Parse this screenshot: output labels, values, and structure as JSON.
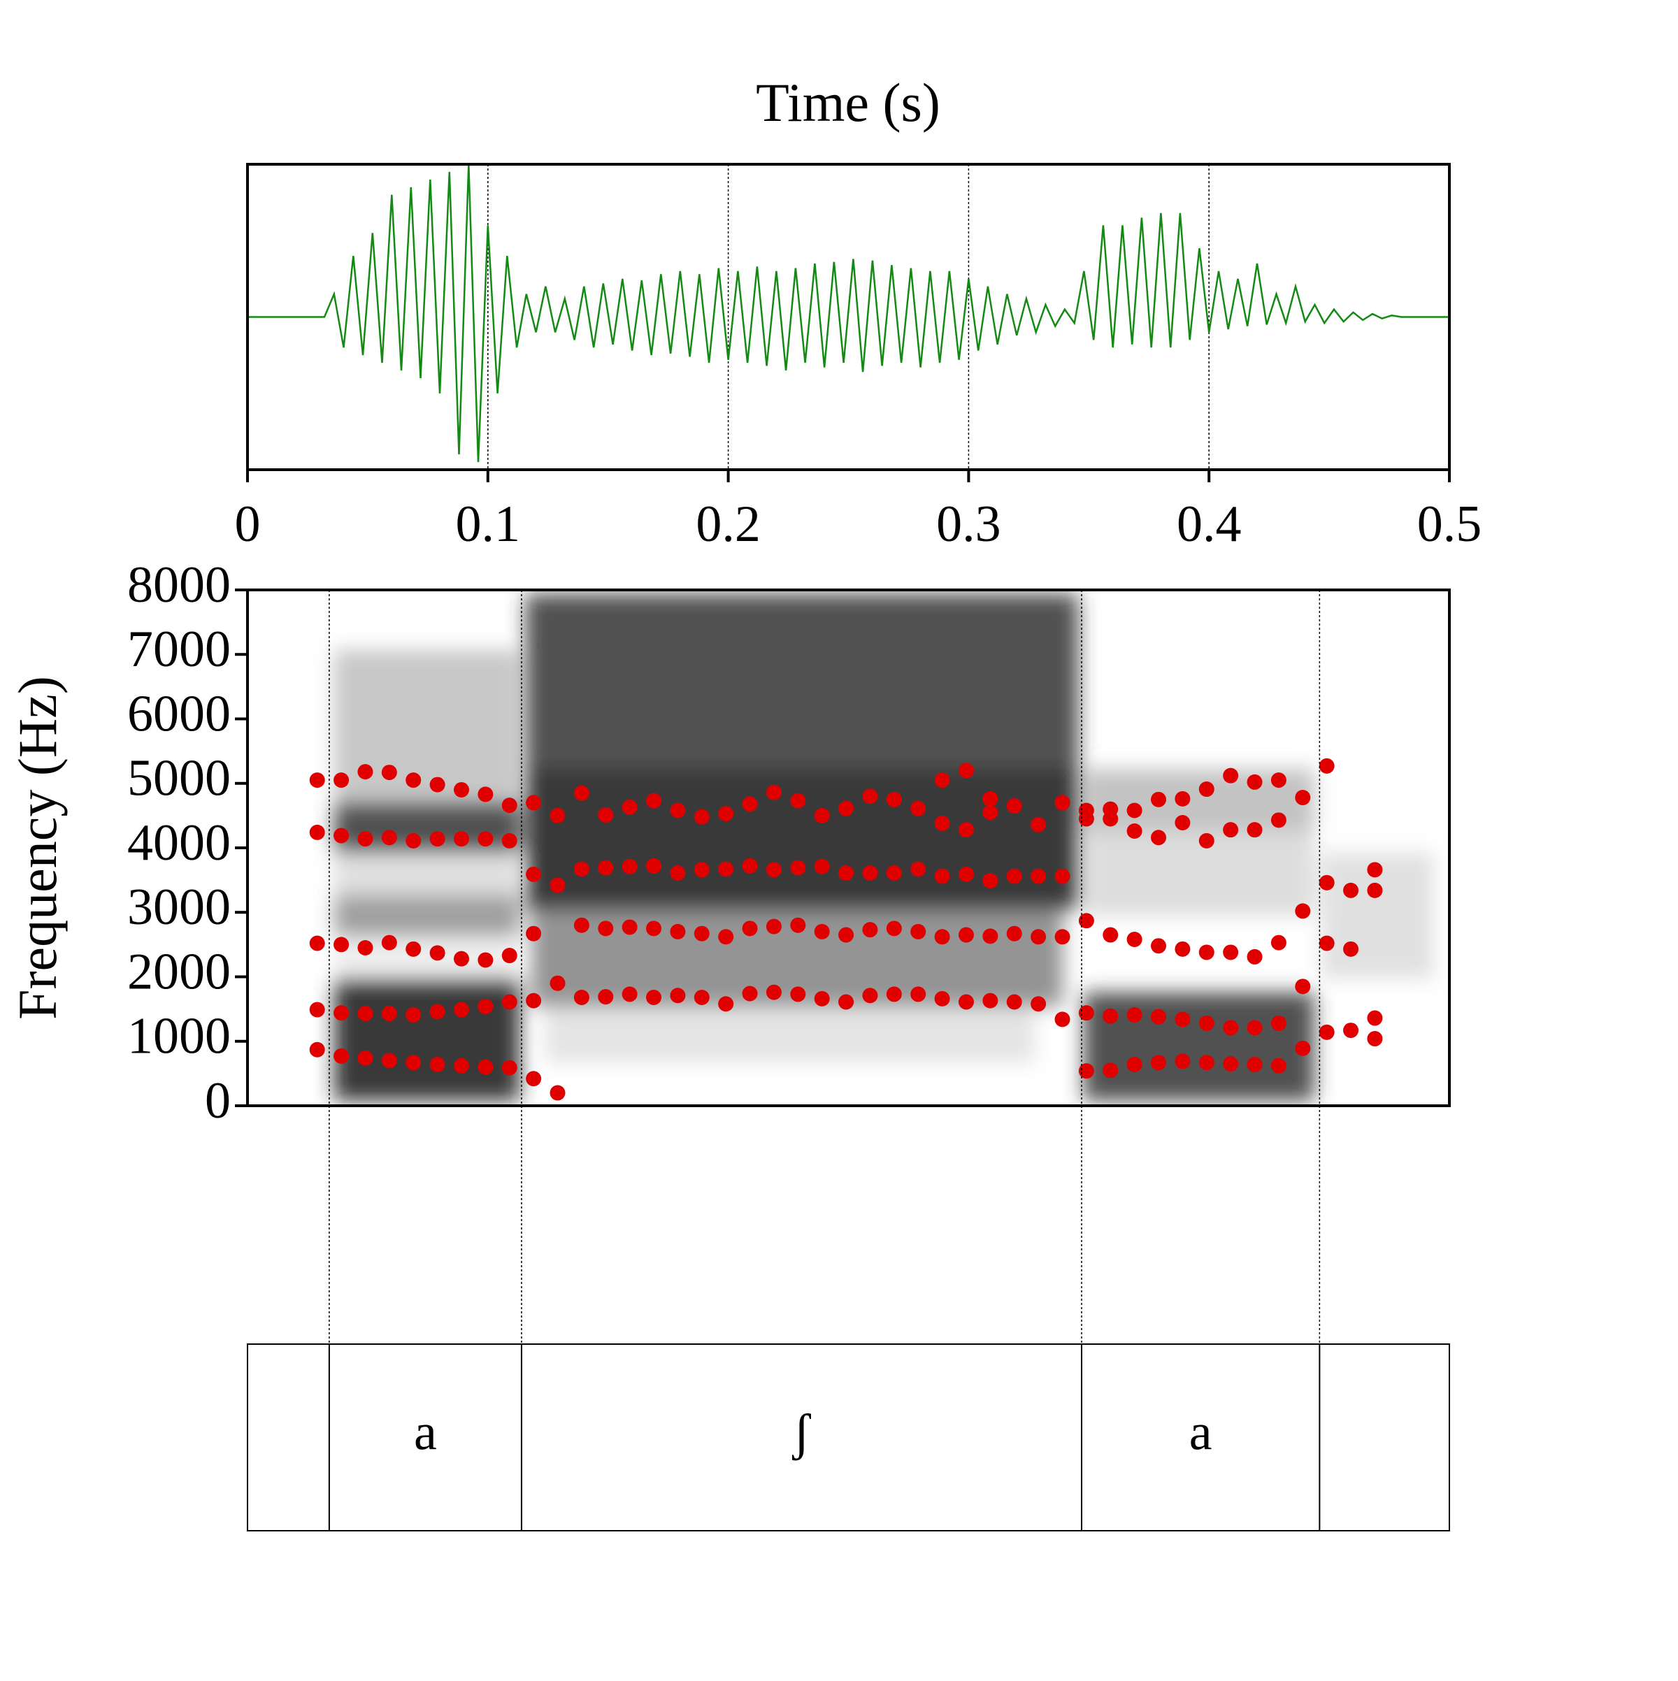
{
  "chart_data": [
    {
      "type": "line",
      "title": "Time (s)",
      "color": "#138a13",
      "xlim": [
        0,
        0.5
      ],
      "xticks": [
        0,
        0.1,
        0.2,
        0.3,
        0.4,
        0.5
      ],
      "ylim": [
        -1,
        1
      ],
      "grid": true,
      "x": [
        0,
        0.004,
        0.008,
        0.012,
        0.016,
        0.02,
        0.024,
        0.028,
        0.032,
        0.036,
        0.04,
        0.044,
        0.048,
        0.052,
        0.056,
        0.06,
        0.064,
        0.068,
        0.072,
        0.076,
        0.08,
        0.084,
        0.088,
        0.092,
        0.096,
        0.1,
        0.104,
        0.108,
        0.112,
        0.116,
        0.12,
        0.124,
        0.128,
        0.132,
        0.136,
        0.14,
        0.144,
        0.148,
        0.152,
        0.156,
        0.16,
        0.164,
        0.168,
        0.172,
        0.176,
        0.18,
        0.184,
        0.188,
        0.192,
        0.196,
        0.2,
        0.204,
        0.208,
        0.212,
        0.216,
        0.22,
        0.224,
        0.228,
        0.232,
        0.236,
        0.24,
        0.244,
        0.248,
        0.252,
        0.256,
        0.26,
        0.264,
        0.268,
        0.272,
        0.276,
        0.28,
        0.284,
        0.288,
        0.292,
        0.296,
        0.3,
        0.304,
        0.308,
        0.312,
        0.316,
        0.32,
        0.324,
        0.328,
        0.332,
        0.336,
        0.34,
        0.344,
        0.348,
        0.352,
        0.356,
        0.36,
        0.364,
        0.368,
        0.372,
        0.376,
        0.38,
        0.384,
        0.388,
        0.392,
        0.396,
        0.4,
        0.404,
        0.408,
        0.412,
        0.416,
        0.42,
        0.424,
        0.428,
        0.432,
        0.436,
        0.44,
        0.444,
        0.448,
        0.452,
        0.456,
        0.46,
        0.464,
        0.468,
        0.472,
        0.476,
        0.48,
        0.484,
        0.488,
        0.492,
        0.496,
        0.5
      ],
      "values": [
        0,
        0,
        0,
        0,
        0,
        0,
        0,
        0,
        0,
        0.15,
        -0.2,
        0.4,
        -0.25,
        0.55,
        -0.3,
        0.8,
        -0.35,
        0.85,
        -0.4,
        0.9,
        -0.5,
        0.95,
        -0.9,
        1.0,
        -0.95,
        0.6,
        -0.5,
        0.4,
        -0.2,
        0.15,
        -0.1,
        0.2,
        -0.1,
        0.12,
        -0.15,
        0.2,
        -0.2,
        0.22,
        -0.18,
        0.25,
        -0.22,
        0.24,
        -0.25,
        0.28,
        -0.24,
        0.3,
        -0.26,
        0.28,
        -0.3,
        0.32,
        -0.28,
        0.3,
        -0.3,
        0.33,
        -0.32,
        0.3,
        -0.35,
        0.32,
        -0.3,
        0.35,
        -0.33,
        0.36,
        -0.3,
        0.38,
        -0.36,
        0.37,
        -0.32,
        0.34,
        -0.3,
        0.32,
        -0.33,
        0.3,
        -0.3,
        0.3,
        -0.28,
        0.25,
        -0.22,
        0.2,
        -0.18,
        0.15,
        -0.12,
        0.12,
        -0.1,
        0.08,
        -0.06,
        0.05,
        -0.04,
        0.3,
        -0.15,
        0.6,
        -0.2,
        0.6,
        -0.18,
        0.65,
        -0.2,
        0.68,
        -0.2,
        0.68,
        -0.15,
        0.45,
        -0.1,
        0.3,
        -0.08,
        0.25,
        -0.06,
        0.35,
        -0.05,
        0.15,
        -0.04,
        0.2,
        -0.03,
        0.08,
        -0.04,
        0.05,
        -0.03,
        0.03,
        -0.02,
        0.02,
        -0.01,
        0.01,
        0,
        0,
        0,
        0,
        0,
        0
      ]
    },
    {
      "type": "scatter",
      "ylabel": "Frequency (Hz)",
      "color": "#e00000",
      "xlim": [
        0,
        0.5
      ],
      "ylim": [
        0,
        8000
      ],
      "yticks": [
        0,
        1000,
        2000,
        3000,
        4000,
        5000,
        6000,
        7000,
        8000
      ],
      "x": [
        0.029,
        0.029,
        0.029,
        0.029,
        0.029,
        0.039,
        0.039,
        0.039,
        0.039,
        0.039,
        0.049,
        0.049,
        0.049,
        0.049,
        0.049,
        0.059,
        0.059,
        0.059,
        0.059,
        0.059,
        0.069,
        0.069,
        0.069,
        0.069,
        0.069,
        0.079,
        0.079,
        0.079,
        0.079,
        0.079,
        0.089,
        0.089,
        0.089,
        0.089,
        0.089,
        0.099,
        0.099,
        0.099,
        0.099,
        0.099,
        0.109,
        0.109,
        0.109,
        0.109,
        0.109,
        0.119,
        0.119,
        0.119,
        0.119,
        0.119,
        0.129,
        0.129,
        0.129,
        0.129,
        0.139,
        0.139,
        0.139,
        0.139,
        0.149,
        0.149,
        0.149,
        0.149,
        0.159,
        0.159,
        0.159,
        0.159,
        0.169,
        0.169,
        0.169,
        0.169,
        0.179,
        0.179,
        0.179,
        0.179,
        0.189,
        0.189,
        0.189,
        0.189,
        0.199,
        0.199,
        0.199,
        0.199,
        0.209,
        0.209,
        0.209,
        0.209,
        0.219,
        0.219,
        0.219,
        0.219,
        0.229,
        0.229,
        0.229,
        0.229,
        0.239,
        0.239,
        0.239,
        0.239,
        0.249,
        0.249,
        0.249,
        0.249,
        0.259,
        0.259,
        0.259,
        0.259,
        0.269,
        0.269,
        0.269,
        0.269,
        0.279,
        0.279,
        0.279,
        0.279,
        0.289,
        0.289,
        0.289,
        0.289,
        0.289,
        0.299,
        0.299,
        0.299,
        0.299,
        0.299,
        0.309,
        0.309,
        0.309,
        0.309,
        0.309,
        0.319,
        0.319,
        0.319,
        0.319,
        0.329,
        0.329,
        0.329,
        0.329,
        0.339,
        0.339,
        0.339,
        0.339,
        0.349,
        0.349,
        0.349,
        0.349,
        0.349,
        0.359,
        0.359,
        0.359,
        0.359,
        0.359,
        0.369,
        0.369,
        0.369,
        0.369,
        0.369,
        0.379,
        0.379,
        0.379,
        0.379,
        0.379,
        0.389,
        0.389,
        0.389,
        0.389,
        0.389,
        0.399,
        0.399,
        0.399,
        0.399,
        0.399,
        0.409,
        0.409,
        0.409,
        0.409,
        0.409,
        0.419,
        0.419,
        0.419,
        0.419,
        0.419,
        0.429,
        0.429,
        0.429,
        0.429,
        0.429,
        0.439,
        0.439,
        0.439,
        0.439,
        0.449,
        0.449,
        0.449,
        0.449,
        0.459,
        0.459,
        0.459,
        0.469,
        0.469,
        0.469,
        0.469
      ],
      "values": [
        5050,
        4240,
        2520,
        1490,
        870,
        5050,
        4190,
        2500,
        1440,
        770,
        5180,
        4140,
        2450,
        1430,
        740,
        5170,
        4160,
        2530,
        1430,
        700,
        5050,
        4110,
        2430,
        1410,
        670,
        4980,
        4140,
        2370,
        1460,
        640,
        4900,
        4140,
        2280,
        1490,
        620,
        4830,
        4140,
        2260,
        1540,
        600,
        4660,
        4110,
        2330,
        1610,
        590,
        4700,
        3590,
        2670,
        1630,
        420,
        4500,
        3420,
        1900,
        200,
        4850,
        3670,
        2800,
        1680,
        4510,
        3690,
        2750,
        1690,
        4630,
        3710,
        2770,
        1730,
        4730,
        3720,
        2750,
        1680,
        4580,
        3610,
        2700,
        1710,
        4480,
        3660,
        2670,
        1680,
        4530,
        3670,
        2620,
        1580,
        4680,
        3720,
        2750,
        1740,
        4860,
        3660,
        2780,
        1760,
        4730,
        3690,
        2800,
        1730,
        4500,
        3710,
        2700,
        1660,
        4610,
        3610,
        2650,
        1610,
        4800,
        3610,
        2730,
        1710,
        4750,
        3610,
        2750,
        1730,
        4610,
        3670,
        2700,
        1730,
        5050,
        4380,
        3560,
        2620,
        1660,
        5200,
        4280,
        3590,
        2650,
        1610,
        4760,
        4550,
        3490,
        2630,
        1630,
        4650,
        3560,
        2670,
        1610,
        4360,
        3560,
        2620,
        1580,
        4700,
        3560,
        2620,
        1340,
        4580,
        4450,
        2870,
        1440,
        540,
        4600,
        4450,
        2650,
        1390,
        550,
        4580,
        4260,
        2580,
        1410,
        640,
        4750,
        4160,
        2480,
        1380,
        670,
        4760,
        4390,
        2430,
        1340,
        690,
        4910,
        4110,
        2380,
        1280,
        670,
        5120,
        4280,
        2380,
        1210,
        650,
        5020,
        4280,
        2310,
        1210,
        640,
        5050,
        4430,
        2530,
        1280,
        620,
        4780,
        3020,
        1850,
        890,
        5270,
        3460,
        2520,
        1140,
        3340,
        2430,
        1170,
        3660,
        3340,
        1360,
        1040
      ]
    },
    {
      "type": "interval",
      "xlim": [
        0,
        0.5
      ],
      "boundaries": [
        0.034,
        0.114,
        0.347,
        0.446
      ],
      "labels": [
        null,
        "a",
        "ʃ",
        "a",
        null
      ]
    }
  ]
}
